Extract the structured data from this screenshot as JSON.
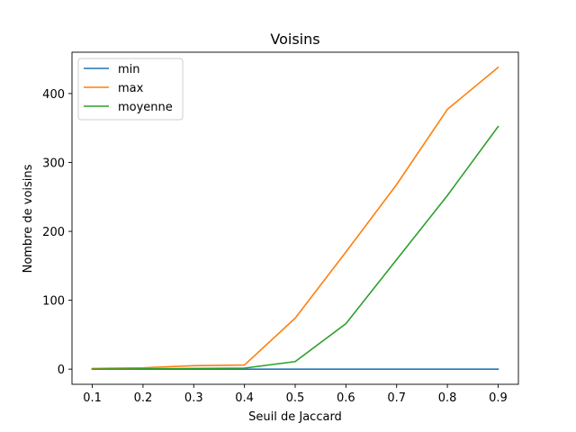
{
  "chart_data": {
    "type": "line",
    "title": "Voisins",
    "xlabel": "Seuil de Jaccard",
    "ylabel": "Nombre de voisins",
    "x": [
      0.1,
      0.2,
      0.3,
      0.4,
      0.5,
      0.6,
      0.7,
      0.8,
      0.9
    ],
    "x_ticks": [
      "0.1",
      "0.2",
      "0.3",
      "0.4",
      "0.5",
      "0.6",
      "0.7",
      "0.8",
      "0.9"
    ],
    "xlim": [
      0.06,
      0.94
    ],
    "y_ticks": [
      "0",
      "100",
      "200",
      "300",
      "400"
    ],
    "y_tick_values": [
      0,
      100,
      200,
      300,
      400
    ],
    "ylim": [
      -22,
      460
    ],
    "grid": false,
    "legend_position": "top-left",
    "series": [
      {
        "name": "min",
        "color": "#1f77b4",
        "values": [
          0,
          0,
          0,
          0,
          0,
          0,
          0,
          0,
          0
        ]
      },
      {
        "name": "max",
        "color": "#ff7f0e",
        "values": [
          1,
          2,
          5,
          6,
          74,
          170,
          268,
          377,
          438
        ]
      },
      {
        "name": "moyenne",
        "color": "#2ca02c",
        "values": [
          0,
          0.5,
          1,
          1.5,
          11,
          66,
          159,
          252,
          352
        ]
      }
    ]
  }
}
